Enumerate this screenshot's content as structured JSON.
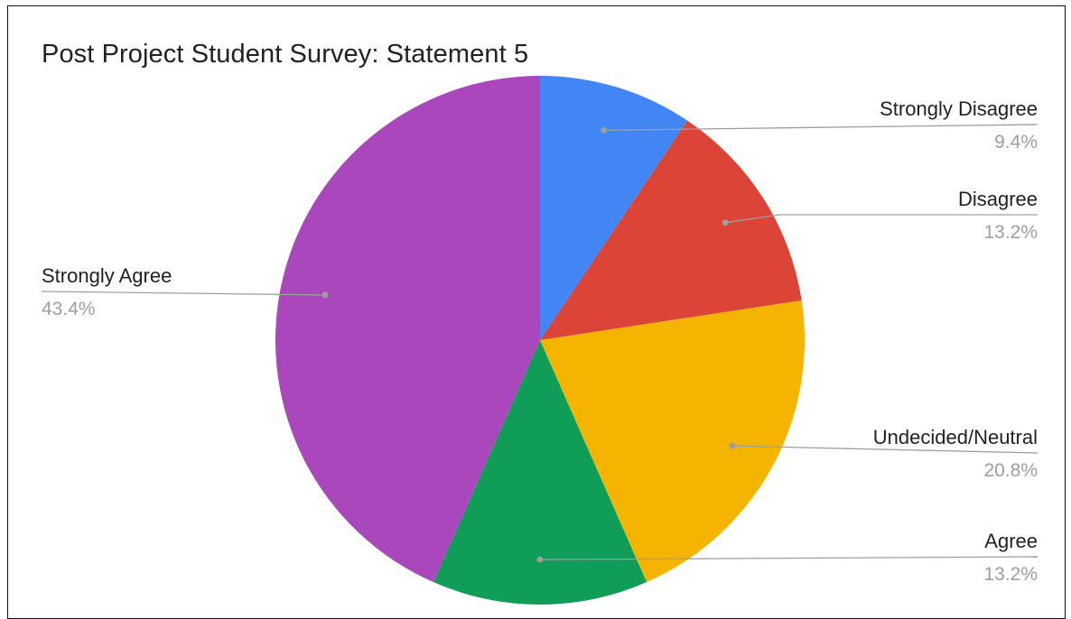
{
  "chart_data": {
    "type": "pie",
    "title": "Post Project Student Survey: Statement 5",
    "slices": [
      {
        "label": "Strongly Disagree",
        "value": 9.4,
        "display": "9.4%",
        "color": "#4285f4"
      },
      {
        "label": "Disagree",
        "value": 13.2,
        "display": "13.2%",
        "color": "#db4437"
      },
      {
        "label": "Undecided/Neutral",
        "value": 20.8,
        "display": "20.8%",
        "color": "#f4b400"
      },
      {
        "label": "Agree",
        "value": 13.2,
        "display": "13.2%",
        "color": "#0f9d58"
      },
      {
        "label": "Strongly Agree",
        "value": 43.4,
        "display": "43.4%",
        "color": "#ab47bc"
      }
    ],
    "start_angle_deg": 0,
    "direction": "clockwise",
    "legend": "leader-line labels"
  }
}
